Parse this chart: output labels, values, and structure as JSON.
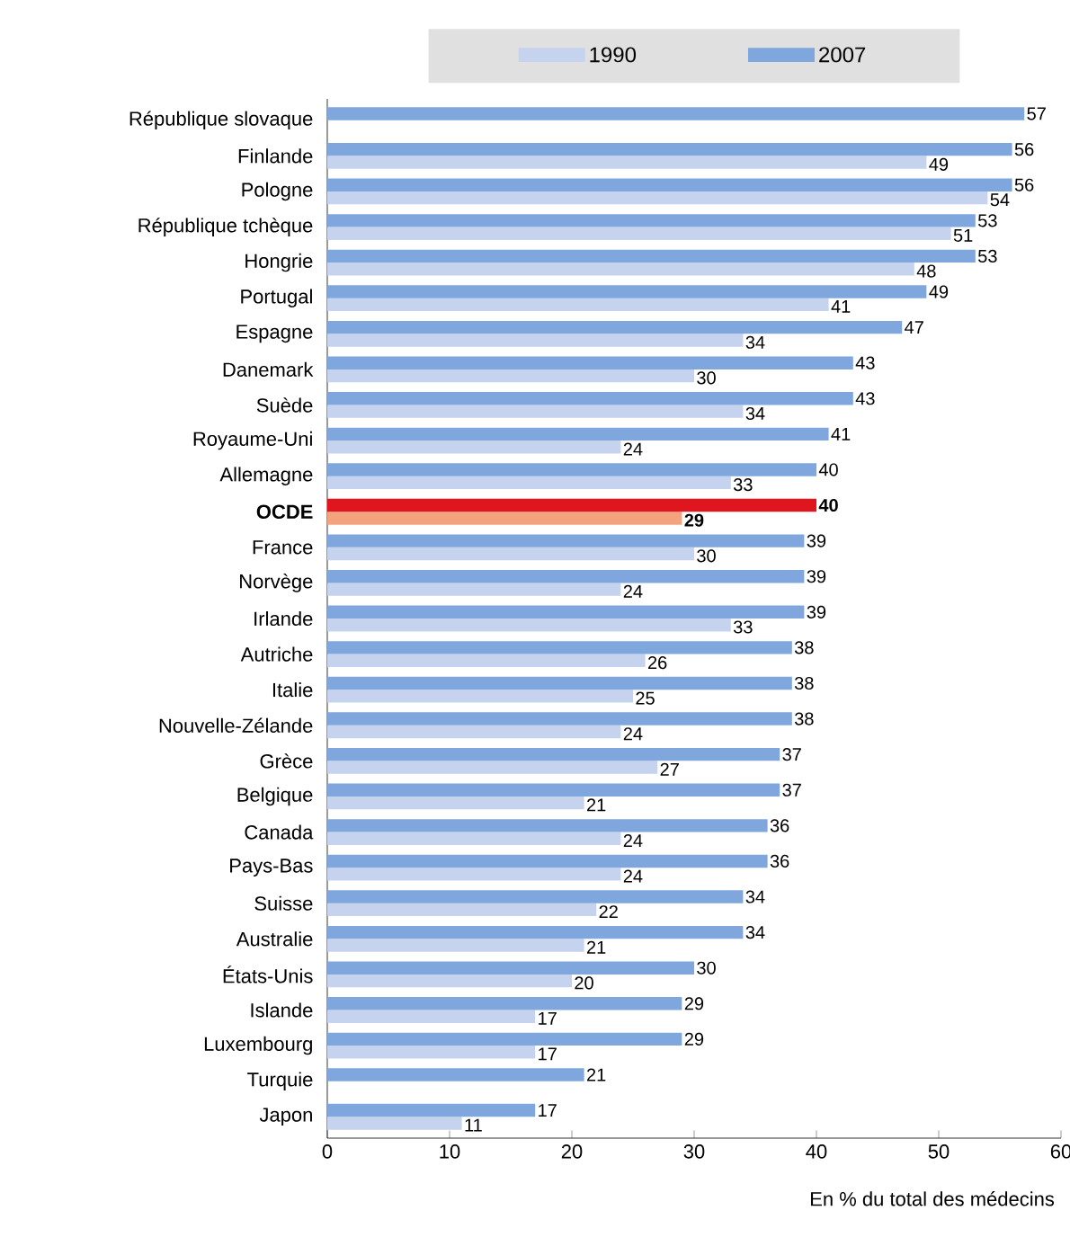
{
  "chart_data": {
    "type": "bar",
    "orientation": "horizontal",
    "xlabel": "En % du total des médecins",
    "categories": [
      "République slovaque",
      "Finlande",
      "Pologne",
      "République tchèque",
      "Hongrie",
      "Portugal",
      "Espagne",
      "Danemark",
      "Suède",
      "Royaume-Uni",
      "Allemagne",
      "OCDE",
      "France",
      "Norvège",
      "Irlande",
      "Autriche",
      "Italie",
      "Nouvelle-Zélande",
      "Grèce",
      "Belgique",
      "Canada",
      "Pays-Bas",
      "Suisse",
      "Australie",
      "États-Unis",
      "Islande",
      "Luxembourg",
      "Turquie",
      "Japon"
    ],
    "series": [
      {
        "name": "1990",
        "color": "#c5d3ef",
        "colors": [
          "#c5d3ef",
          "#c5d3ef",
          "#c5d3ef",
          "#c5d3ef",
          "#c5d3ef",
          "#c5d3ef",
          "#c5d3ef",
          "#c5d3ef",
          "#c5d3ef",
          "#c5d3ef",
          "#c5d3ef",
          "#f4a37f",
          "#c5d3ef",
          "#c5d3ef",
          "#c5d3ef",
          "#c5d3ef",
          "#c5d3ef",
          "#c5d3ef",
          "#c5d3ef",
          "#c5d3ef",
          "#c5d3ef",
          "#c5d3ef",
          "#c5d3ef",
          "#c5d3ef",
          "#c5d3ef",
          "#c5d3ef",
          "#c5d3ef",
          "#c5d3ef",
          "#c5d3ef"
        ],
        "values": [
          null,
          49,
          54,
          51,
          48,
          41,
          34,
          30,
          34,
          24,
          33,
          29,
          30,
          24,
          33,
          26,
          25,
          24,
          27,
          21,
          24,
          24,
          22,
          21,
          20,
          17,
          17,
          null,
          11
        ]
      },
      {
        "name": "2007",
        "color": "#7fa7dd",
        "colors": [
          "#7fa7dd",
          "#7fa7dd",
          "#7fa7dd",
          "#7fa7dd",
          "#7fa7dd",
          "#7fa7dd",
          "#7fa7dd",
          "#7fa7dd",
          "#7fa7dd",
          "#7fa7dd",
          "#7fa7dd",
          "#e0161e",
          "#7fa7dd",
          "#7fa7dd",
          "#7fa7dd",
          "#7fa7dd",
          "#7fa7dd",
          "#7fa7dd",
          "#7fa7dd",
          "#7fa7dd",
          "#7fa7dd",
          "#7fa7dd",
          "#7fa7dd",
          "#7fa7dd",
          "#7fa7dd",
          "#7fa7dd",
          "#7fa7dd",
          "#7fa7dd",
          "#7fa7dd"
        ],
        "values": [
          57,
          56,
          56,
          53,
          53,
          49,
          47,
          43,
          43,
          41,
          40,
          40,
          39,
          39,
          39,
          38,
          38,
          38,
          37,
          37,
          36,
          36,
          34,
          34,
          30,
          29,
          29,
          21,
          17
        ]
      }
    ],
    "xlim": [
      0,
      60
    ],
    "xticks": [
      0,
      10,
      20,
      30,
      40,
      50,
      60
    ],
    "data_labels": true,
    "legend": "top",
    "grid": false
  }
}
